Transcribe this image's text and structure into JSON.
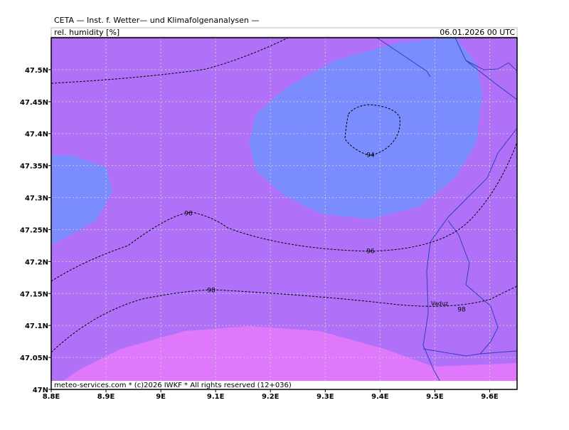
{
  "header": {
    "title": "CETA — Inst. f. Wetter— und Klimafolgenanalysen —",
    "variable": "rel. humidity [%]",
    "datetime": "06.01.2026 00 UTC"
  },
  "footer": "meteo-services.com * (c)2026 IWKF * All rights reserved (12+036)",
  "places": [
    "Vaduz"
  ],
  "contours": [
    {
      "level": 94
    },
    {
      "level": 96
    },
    {
      "level": 96
    },
    {
      "level": 98
    },
    {
      "level": 98
    }
  ],
  "axes": {
    "xlim": [
      8.8,
      9.65
    ],
    "ylim": [
      47,
      47.55
    ],
    "xticks": [
      {
        "value": 8.8,
        "label": "8.8E"
      },
      {
        "value": 8.9,
        "label": "8.9E"
      },
      {
        "value": 9,
        "label": "9E"
      },
      {
        "value": 9.1,
        "label": "9.1E"
      },
      {
        "value": 9.2,
        "label": "9.2E"
      },
      {
        "value": 9.3,
        "label": "9.3E"
      },
      {
        "value": 9.4,
        "label": "9.4E"
      },
      {
        "value": 9.5,
        "label": "9.5E"
      },
      {
        "value": 9.6,
        "label": "9.6E"
      }
    ],
    "yticks": [
      {
        "value": 47,
        "label": "47N"
      },
      {
        "value": 47.05,
        "label": "47.05N"
      },
      {
        "value": 47.1,
        "label": "47.1N"
      },
      {
        "value": 47.15,
        "label": "47.15N"
      },
      {
        "value": 47.2,
        "label": "47.2N"
      },
      {
        "value": 47.25,
        "label": "47.25N"
      },
      {
        "value": 47.3,
        "label": "47.3N"
      },
      {
        "value": 47.35,
        "label": "47.35N"
      },
      {
        "value": 47.4,
        "label": "47.4N"
      },
      {
        "value": 47.45,
        "label": "47.45N"
      },
      {
        "value": 47.5,
        "label": "47.5N"
      }
    ]
  }
}
